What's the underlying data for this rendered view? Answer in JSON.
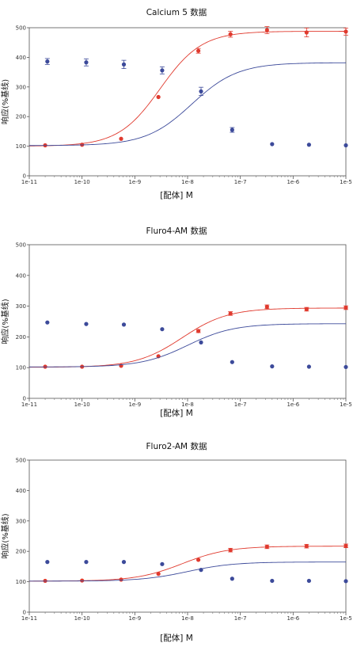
{
  "chart_data": [
    {
      "type": "scatter",
      "title": "Calcium 5 数据",
      "xlabel": "[配体] M",
      "ylabel": "响应(%基线)",
      "xscale": "log",
      "xlim": [
        1e-11,
        1e-05
      ],
      "xticks": [
        "1e-11",
        "1e-10",
        "1e-9",
        "1e-8",
        "1e-7",
        "1e-6",
        "1e-5"
      ],
      "ylim": [
        0,
        500
      ],
      "yticks": [
        "0",
        "100",
        "200",
        "300",
        "400",
        "500"
      ],
      "grid": false,
      "series": [
        {
          "color": "#e03a2e",
          "x": [
            2e-11,
            1e-10,
            5.5e-10,
            2.8e-09,
            1.6e-08,
            6.5e-08,
            3.2e-07,
            1.8e-06,
            1e-05
          ],
          "y": [
            103,
            105,
            125,
            266,
            422,
            478,
            492,
            484,
            487
          ],
          "err": [
            0,
            0,
            0,
            0,
            8,
            10,
            12,
            15,
            12
          ],
          "fit": {
            "bottom": 100,
            "top": 488,
            "logec50": -8.52,
            "hill": 1.1
          }
        },
        {
          "color": "#3c4a9a",
          "x": [
            2.2e-11,
            1.2e-10,
            6.2e-10,
            3.3e-09,
            1.8e-08,
            7e-08,
            4e-07,
            2e-06,
            1e-05
          ],
          "y": [
            386,
            383,
            376,
            356,
            285,
            155,
            107,
            105,
            103
          ],
          "err": [
            10,
            12,
            14,
            12,
            14,
            8,
            0,
            0,
            0
          ],
          "fit": {
            "bottom": 102,
            "top": 382,
            "logec50": -7.92,
            "hill": 1.0
          }
        }
      ]
    },
    {
      "type": "scatter",
      "title": "Fluro4-AM 数据",
      "xlabel": "[配体] M",
      "ylabel": "响应(%基线)",
      "xscale": "log",
      "xlim": [
        1e-11,
        1e-05
      ],
      "xticks": [
        "1e-11",
        "1e-10",
        "1e-9",
        "1e-8",
        "1e-7",
        "1e-6",
        "1e-5"
      ],
      "ylim": [
        0,
        500
      ],
      "yticks": [
        "0",
        "100",
        "200",
        "300",
        "400",
        "500"
      ],
      "grid": false,
      "series": [
        {
          "color": "#e03a2e",
          "x": [
            2e-11,
            1e-10,
            5.5e-10,
            2.8e-09,
            1.6e-08,
            6.5e-08,
            3.2e-07,
            1.8e-06,
            1e-05
          ],
          "y": [
            103,
            103,
            106,
            137,
            219,
            276,
            298,
            290,
            295
          ],
          "err": [
            0,
            0,
            0,
            0,
            5,
            6,
            6,
            6,
            6
          ],
          "fit": {
            "bottom": 101,
            "top": 294,
            "logec50": -8.1,
            "hill": 1.0
          }
        },
        {
          "color": "#3c4a9a",
          "x": [
            2.2e-11,
            1.2e-10,
            6.2e-10,
            3.3e-09,
            1.8e-08,
            7e-08,
            4e-07,
            2e-06,
            1e-05
          ],
          "y": [
            247,
            242,
            240,
            225,
            182,
            118,
            104,
            103,
            102
          ],
          "err": [
            0,
            0,
            0,
            0,
            0,
            0,
            0,
            0,
            0
          ],
          "fit": {
            "bottom": 102,
            "top": 243,
            "logec50": -8.0,
            "hill": 1.0
          }
        }
      ]
    },
    {
      "type": "scatter",
      "title": "Fluro2-AM 数据",
      "xlabel": "[配体] M",
      "ylabel": "响应(%基线)",
      "xscale": "log",
      "xlim": [
        1e-11,
        1e-05
      ],
      "xticks": [
        "1e-11",
        "1e-10",
        "1e-9",
        "1e-8",
        "1e-7",
        "1e-6",
        "1e-5"
      ],
      "ylim": [
        0,
        500
      ],
      "yticks": [
        "0",
        "100",
        "200",
        "300",
        "400",
        "500"
      ],
      "grid": false,
      "series": [
        {
          "color": "#e03a2e",
          "x": [
            2e-11,
            1e-10,
            5.5e-10,
            2.8e-09,
            1.6e-08,
            6.5e-08,
            3.2e-07,
            1.8e-06,
            1e-05
          ],
          "y": [
            103,
            104,
            107,
            126,
            172,
            204,
            215,
            217,
            218
          ],
          "err": [
            0,
            0,
            0,
            0,
            0,
            6,
            6,
            6,
            6
          ],
          "fit": {
            "bottom": 102,
            "top": 217,
            "logec50": -8.1,
            "hill": 1.0
          }
        },
        {
          "color": "#3c4a9a",
          "x": [
            2.2e-11,
            1.2e-10,
            6.2e-10,
            3.3e-09,
            1.8e-08,
            7e-08,
            4e-07,
            2e-06,
            1e-05
          ],
          "y": [
            165,
            165,
            165,
            158,
            139,
            110,
            103,
            103,
            102
          ],
          "err": [
            0,
            0,
            0,
            0,
            0,
            0,
            0,
            0,
            0
          ],
          "fit": {
            "bottom": 102,
            "top": 165,
            "logec50": -8.0,
            "hill": 1.0
          }
        }
      ]
    }
  ]
}
